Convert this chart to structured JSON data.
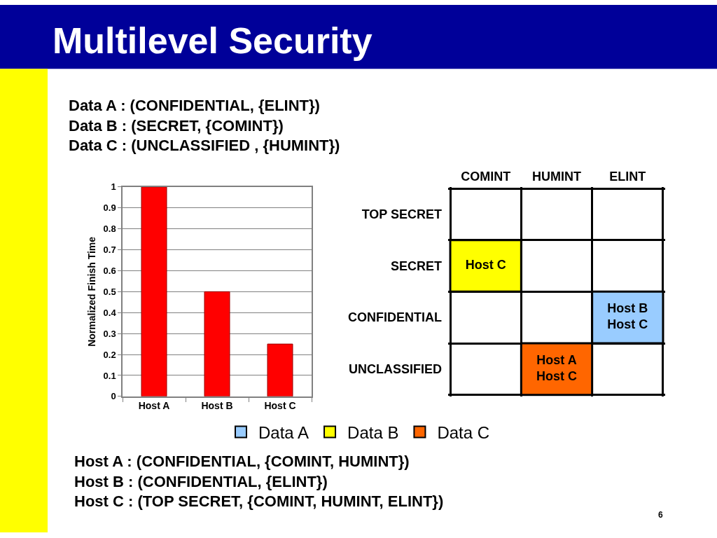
{
  "chart_data": [
    {
      "type": "bar",
      "title": "Multilevel Security",
      "ylabel": "Normalized Finish Time",
      "categories": [
        "Host A",
        "Host B",
        "Host C"
      ],
      "values": [
        1,
        0.5,
        0.25
      ],
      "color": "#ff0000",
      "ylim": [
        0,
        1
      ],
      "yticks": [
        0,
        0.1,
        0.2,
        0.3,
        0.4,
        0.5,
        0.6,
        0.7,
        0.8,
        0.9,
        1
      ],
      "grid": "y",
      "annotations": [
        "6"
      ]
    },
    {
      "type": "other",
      "categories": [
        "COMINT",
        "HUMINT",
        "ELINT"
      ],
      "y_categories": [
        "TOP SECRET",
        "SECRET",
        "CONFIDENTIAL",
        "UNCLASSIFIED"
      ],
      "cell_labels": [
        [
          null,
          null,
          null
        ],
        [
          "Host C",
          null,
          null
        ],
        [
          null,
          null,
          "Host B\nHost C"
        ],
        [
          null,
          "Host A\nHost C",
          null
        ]
      ],
      "colors": [
        [
          null,
          null,
          null
        ],
        [
          "#ffff00",
          null,
          null
        ],
        [
          null,
          null,
          "#99ccff"
        ],
        [
          null,
          "#ff6600",
          null
        ]
      ],
      "series": [
        {
          "name": "Data A",
          "color": "#99ccff",
          "values": [
            null,
            null,
            null
          ]
        },
        {
          "name": "Data B",
          "color": "#ffff00",
          "values": [
            null,
            null,
            null
          ]
        },
        {
          "name": "Data C",
          "color": "#ff6600",
          "values": [
            null,
            null,
            null
          ]
        }
      ],
      "legend": "bottom",
      "annotations": [
        "Data A : (CONFIDENTIAL, {ELINT})\nData B : (SECRET, {COMINT})\nData C : (UNCLASSIFIED , {HUMINT})",
        "Host A : (CONFIDENTIAL, {COMINT, HUMINT})\nHost B : (CONFIDENTIAL, {ELINT})\nHost C : (TOP SECRET, {COMINT, HUMINT, ELINT})"
      ]
    }
  ]
}
